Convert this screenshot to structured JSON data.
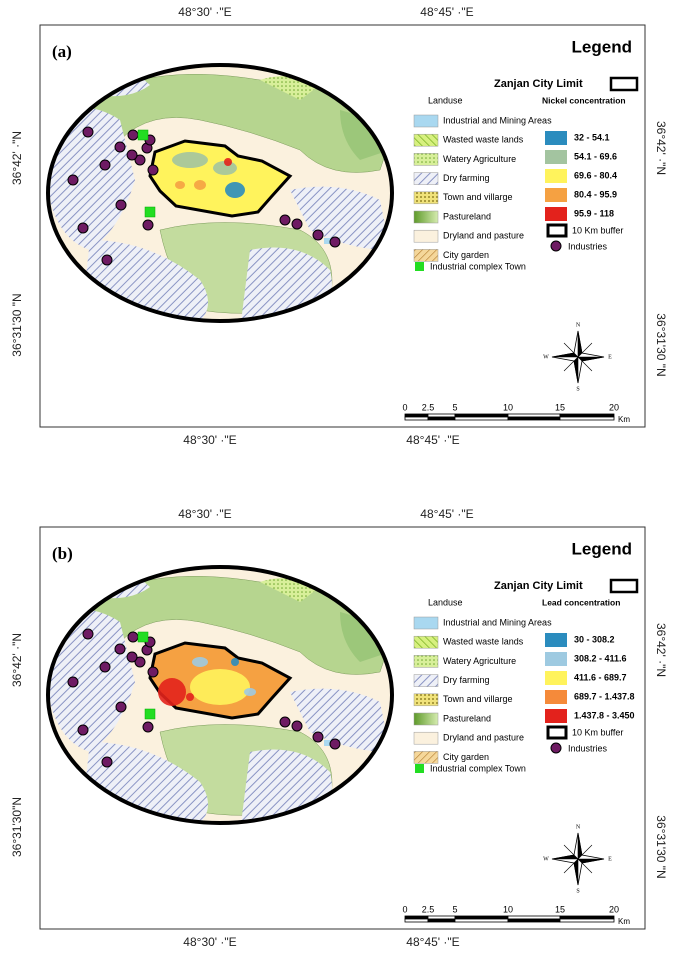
{
  "panels": [
    {
      "label": "(a)",
      "top_coords": [
        "48°30' ·\"E",
        "48°45' ·\"E"
      ],
      "bottom_coords": [
        "48°30' ·\"E",
        "48°45' ·\"E"
      ],
      "left_coords": [
        "36°42' ·\"N",
        "36°31'30 \"N"
      ],
      "right_coords": [
        "36°42' ·\"N",
        "36°31'30 \"N"
      ],
      "legend": {
        "title": "Legend",
        "city_limit": "Zanjan City Limit",
        "landuse_title": "Landuse",
        "landuse": [
          "Industrial and Mining Areas",
          "Wasted waste lands",
          "Watery Agriculture",
          "Dry farming",
          "Town and villarge",
          "Pastureland",
          "Dryland and pasture",
          "City garden"
        ],
        "concentration_title": "Nickel concentration",
        "classes": [
          {
            "label": "32 - 54.1",
            "color": "#2b8cbe"
          },
          {
            "label": "54.1 - 69.6",
            "color": "#a3c4a0"
          },
          {
            "label": "69.6 - 80.4",
            "color": "#fff35c"
          },
          {
            "label": "80.4 - 95.9",
            "color": "#f5a142"
          },
          {
            "label": "95.9 - 118",
            "color": "#e3221c"
          }
        ],
        "buffer": "10 Km buffer",
        "industries": "Industries",
        "industrial_complex": "Industrial complex Town"
      },
      "scale": {
        "ticks": [
          "0",
          "2.5",
          "5",
          "10",
          "15",
          "20"
        ],
        "unit": "Km"
      },
      "compass": [
        "N",
        "E",
        "S",
        "W"
      ]
    },
    {
      "label": "(b)",
      "top_coords": [
        "48°30' ·\"E",
        "48°45' ·\"E"
      ],
      "bottom_coords": [
        "48°30' ·\"E",
        "48°45' ·\"E"
      ],
      "left_coords": [
        "36°42' ·\"N",
        "36°31'30\"N"
      ],
      "right_coords": [
        "36°42' ·\"N",
        "36°31'30 \"N"
      ],
      "legend": {
        "title": "Legend",
        "city_limit": "Zanjan City Limit",
        "landuse_title": "Landuse",
        "landuse": [
          "Industrial and Mining Areas",
          "Wasted waste lands",
          "Watery Agriculture",
          "Dry farming",
          "Town and villarge",
          "Pastureland",
          "Dryland and pasture",
          "City garden"
        ],
        "concentration_title": "Lead concentration",
        "classes": [
          {
            "label": "30 - 308.2",
            "color": "#2b8cbe"
          },
          {
            "label": "308.2 - 411.6",
            "color": "#9ecae1"
          },
          {
            "label": "411.6 - 689.7",
            "color": "#fff35c"
          },
          {
            "label": "689.7 - 1.437.8",
            "color": "#f58a3a"
          },
          {
            "label": "1.437.8 - 3.450",
            "color": "#e3221c"
          }
        ],
        "buffer": "10 Km buffer",
        "industries": "Industries",
        "industrial_complex": "Industrial complex Town"
      },
      "scale": {
        "ticks": [
          "0",
          "2.5",
          "5",
          "10",
          "15",
          "20"
        ],
        "unit": "Km"
      },
      "compass": [
        "N",
        "E",
        "S",
        "W"
      ]
    }
  ]
}
